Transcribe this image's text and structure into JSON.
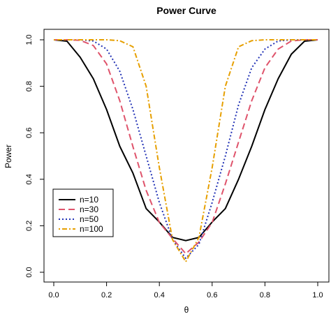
{
  "chart_data": {
    "type": "line",
    "title": "Power Curve",
    "xlabel": "θ",
    "ylabel": "Power",
    "xlim": [
      0,
      1
    ],
    "ylim": [
      0,
      1
    ],
    "x_ticks": [
      "0.0",
      "0.2",
      "0.4",
      "0.6",
      "0.8",
      "1.0"
    ],
    "y_ticks": [
      "0.0",
      "0.2",
      "0.4",
      "0.6",
      "0.8",
      "1.0"
    ],
    "grid": false,
    "legend_position": "bottom-left",
    "x": [
      0.0,
      0.05,
      0.1,
      0.15,
      0.2,
      0.25,
      0.3,
      0.35,
      0.4,
      0.45,
      0.5,
      0.55,
      0.6,
      0.65,
      0.7,
      0.75,
      0.8,
      0.85,
      0.9,
      0.95,
      1.0
    ],
    "series": [
      {
        "name": "n=10",
        "color": "#000000",
        "dash": "solid",
        "values": [
          1.0,
          0.994,
          0.925,
          0.832,
          0.7,
          0.542,
          0.426,
          0.274,
          0.216,
          0.15,
          0.136,
          0.15,
          0.216,
          0.274,
          0.4,
          0.542,
          0.7,
          0.832,
          0.938,
          0.994,
          1.0
        ]
      },
      {
        "name": "n=30",
        "color": "#df536b",
        "dash": "dashed",
        "values": [
          1.0,
          1.0,
          0.998,
          0.975,
          0.896,
          0.738,
          0.54,
          0.352,
          0.214,
          0.145,
          0.08,
          0.13,
          0.214,
          0.38,
          0.56,
          0.738,
          0.88,
          0.96,
          0.995,
          1.0,
          1.0
        ]
      },
      {
        "name": "n=50",
        "color": "#2131b5",
        "dash": "dotted",
        "values": [
          1.0,
          1.0,
          1.0,
          0.995,
          0.96,
          0.865,
          0.7,
          0.5,
          0.3,
          0.14,
          0.06,
          0.12,
          0.3,
          0.5,
          0.72,
          0.88,
          0.96,
          0.995,
          1.0,
          1.0,
          1.0
        ]
      },
      {
        "name": "n=100",
        "color": "#e69f00",
        "dash": "dotdash",
        "values": [
          1.0,
          1.0,
          1.0,
          1.0,
          1.0,
          0.996,
          0.97,
          0.8,
          0.45,
          0.14,
          0.045,
          0.15,
          0.45,
          0.8,
          0.97,
          0.996,
          1.0,
          1.0,
          1.0,
          1.0,
          1.0
        ]
      }
    ]
  }
}
